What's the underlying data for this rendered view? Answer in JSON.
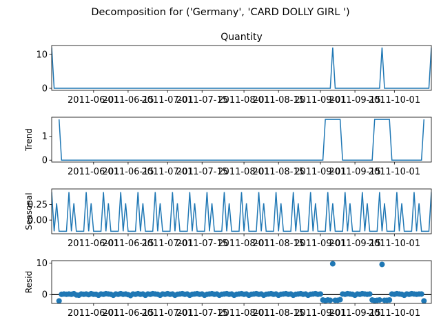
{
  "figure": {
    "suptitle": "Decomposition for ('Germany', 'CARD DOLLY GIRL ')"
  },
  "chart_data": [
    {
      "type": "line",
      "title": "Quantity",
      "ylabel": "",
      "ylim": [
        -0.6,
        12.6
      ],
      "yticks": [
        0,
        10
      ],
      "xlim": [
        0,
        154
      ],
      "xtick_labels": [
        "2011-06-01",
        "2011-06-15",
        "2011-07-01",
        "2011-07-15",
        "2011-08-01",
        "2011-08-15",
        "2011-09-01",
        "2011-09-15",
        "2011-10-01"
      ],
      "xtick_days": [
        17,
        31,
        47,
        61,
        78,
        92,
        109,
        123,
        139
      ],
      "series": [
        {
          "color": "#1f77b4",
          "points": [
            [
              0,
              12
            ],
            [
              1,
              0
            ],
            [
              113,
              0
            ],
            [
              114,
              12
            ],
            [
              115,
              0
            ],
            [
              133,
              0
            ],
            [
              134,
              12
            ],
            [
              135,
              0
            ],
            [
              153,
              0
            ],
            [
              154,
              12
            ]
          ]
        }
      ]
    },
    {
      "type": "line",
      "title": "",
      "ylabel": "Trend",
      "ylim": [
        -0.08,
        1.8
      ],
      "yticks": [
        0,
        1
      ],
      "xlim": [
        0,
        154
      ],
      "xtick_labels": [
        "2011-06-01",
        "2011-06-15",
        "2011-07-01",
        "2011-07-15",
        "2011-08-01",
        "2011-08-15",
        "2011-09-01",
        "2011-09-15",
        "2011-10-01"
      ],
      "xtick_days": [
        17,
        31,
        47,
        61,
        78,
        92,
        109,
        123,
        139
      ],
      "series": [
        {
          "color": "#1f77b4",
          "points": [
            [
              3,
              1.71
            ],
            [
              4,
              0
            ],
            [
              110,
              0
            ],
            [
              111,
              1.71
            ],
            [
              117,
              1.71
            ],
            [
              118,
              0
            ],
            [
              130,
              0
            ],
            [
              131,
              1.71
            ],
            [
              137,
              1.71
            ],
            [
              138,
              0
            ],
            [
              150,
              0
            ],
            [
              151,
              1.71
            ]
          ]
        }
      ]
    },
    {
      "type": "line",
      "title": "",
      "ylabel": "Seasonal",
      "ylim": [
        -0.22,
        0.5
      ],
      "yticks": [
        0.0,
        0.25
      ],
      "ytick_labels": [
        "0.00",
        "0.25"
      ],
      "xlim": [
        0,
        154
      ],
      "xtick_labels": [
        "2011-06-01",
        "2011-06-15",
        "2011-07-01",
        "2011-07-15",
        "2011-08-01",
        "2011-08-15",
        "2011-09-01",
        "2011-09-15",
        "2011-10-01"
      ],
      "xtick_days": [
        17,
        31,
        47,
        61,
        78,
        92,
        109,
        123,
        139
      ],
      "period": 7,
      "seasonal_pattern": [
        0.45,
        -0.18,
        0.27,
        -0.18,
        -0.18,
        -0.18,
        -0.18
      ],
      "series": [
        {
          "color": "#1f77b4"
        }
      ]
    },
    {
      "type": "scatter",
      "title": "",
      "ylabel": "Resid",
      "ylim": [
        -2.8,
        10.8
      ],
      "yticks": [
        0,
        10
      ],
      "baseline": 0,
      "xlim": [
        0,
        154
      ],
      "xtick_labels": [
        "2011-06-01",
        "2011-06-15",
        "2011-07-01",
        "2011-07-15",
        "2011-08-01",
        "2011-08-15",
        "2011-09-01",
        "2011-09-15",
        "2011-10-01"
      ],
      "xtick_days": [
        17,
        31,
        47,
        61,
        78,
        92,
        109,
        123,
        139
      ],
      "series": [
        {
          "color": "#1f77b4",
          "points_note_default_y": 0.1,
          "points": [
            [
              3,
              -2.0
            ],
            [
              4,
              0.1
            ],
            [
              5,
              0.2
            ],
            [
              6,
              0.1
            ],
            [
              7,
              0.2
            ],
            [
              8,
              0.1
            ],
            [
              9,
              0.3
            ],
            [
              10,
              -0.1
            ],
            [
              11,
              -0.2
            ],
            [
              12,
              0.2
            ],
            [
              13,
              0.1
            ],
            [
              14,
              0.2
            ],
            [
              15,
              0.0
            ],
            [
              16,
              0.3
            ],
            [
              17,
              0.1
            ],
            [
              18,
              0.1
            ],
            [
              19,
              -0.2
            ],
            [
              20,
              0.2
            ],
            [
              21,
              0.1
            ],
            [
              22,
              0.3
            ],
            [
              23,
              0.2
            ],
            [
              24,
              0.1
            ],
            [
              25,
              -0.2
            ],
            [
              26,
              0.2
            ],
            [
              27,
              0.1
            ],
            [
              28,
              0.3
            ],
            [
              29,
              0.1
            ],
            [
              30,
              0.2
            ],
            [
              31,
              0.0
            ],
            [
              32,
              -0.3
            ],
            [
              33,
              0.2
            ],
            [
              34,
              0.1
            ],
            [
              35,
              0.3
            ],
            [
              36,
              0.1
            ],
            [
              37,
              0.2
            ],
            [
              38,
              -0.2
            ],
            [
              39,
              0.2
            ],
            [
              40,
              0.1
            ],
            [
              41,
              0.3
            ],
            [
              42,
              0.2
            ],
            [
              43,
              0.1
            ],
            [
              44,
              -0.2
            ],
            [
              45,
              0.2
            ],
            [
              46,
              0.1
            ],
            [
              47,
              0.3
            ],
            [
              48,
              0.1
            ],
            [
              49,
              0.2
            ],
            [
              50,
              -0.2
            ],
            [
              51,
              0.1
            ],
            [
              52,
              0.2
            ],
            [
              53,
              0.3
            ],
            [
              54,
              0.1
            ],
            [
              55,
              0.2
            ],
            [
              56,
              -0.2
            ],
            [
              57,
              0.1
            ],
            [
              58,
              0.2
            ],
            [
              59,
              0.3
            ],
            [
              60,
              0.1
            ],
            [
              61,
              0.2
            ],
            [
              62,
              -0.2
            ],
            [
              63,
              0.1
            ],
            [
              64,
              0.2
            ],
            [
              65,
              0.3
            ],
            [
              66,
              0.1
            ],
            [
              67,
              0.2
            ],
            [
              68,
              -0.2
            ],
            [
              69,
              0.1
            ],
            [
              70,
              0.2
            ],
            [
              71,
              0.3
            ],
            [
              72,
              0.1
            ],
            [
              73,
              0.2
            ],
            [
              74,
              -0.2
            ],
            [
              75,
              0.1
            ],
            [
              76,
              0.2
            ],
            [
              77,
              0.3
            ],
            [
              78,
              0.1
            ],
            [
              79,
              0.2
            ],
            [
              80,
              -0.2
            ],
            [
              81,
              0.1
            ],
            [
              82,
              0.2
            ],
            [
              83,
              0.3
            ],
            [
              84,
              0.1
            ],
            [
              85,
              0.2
            ],
            [
              86,
              -0.2
            ],
            [
              87,
              0.1
            ],
            [
              88,
              0.2
            ],
            [
              89,
              0.3
            ],
            [
              90,
              0.1
            ],
            [
              91,
              0.2
            ],
            [
              92,
              -0.2
            ],
            [
              93,
              0.1
            ],
            [
              94,
              0.2
            ],
            [
              95,
              0.3
            ],
            [
              96,
              0.1
            ],
            [
              97,
              0.2
            ],
            [
              98,
              -0.2
            ],
            [
              99,
              0.1
            ],
            [
              100,
              0.2
            ],
            [
              101,
              0.3
            ],
            [
              102,
              0.1
            ],
            [
              103,
              0.2
            ],
            [
              104,
              -0.2
            ],
            [
              105,
              0.1
            ],
            [
              106,
              0.2
            ],
            [
              107,
              0.3
            ],
            [
              108,
              0.1
            ],
            [
              109,
              0.2
            ],
            [
              110,
              -1.7
            ],
            [
              111,
              -1.9
            ],
            [
              112,
              -1.7
            ],
            [
              113,
              -1.8
            ],
            [
              114,
              9.8
            ],
            [
              115,
              -1.8
            ],
            [
              116,
              -1.8
            ],
            [
              117,
              -1.6
            ],
            [
              118,
              0.2
            ],
            [
              119,
              0.1
            ],
            [
              120,
              0.3
            ],
            [
              121,
              0.2
            ],
            [
              122,
              0.1
            ],
            [
              123,
              -0.2
            ],
            [
              124,
              0.2
            ],
            [
              125,
              0.1
            ],
            [
              126,
              0.3
            ],
            [
              127,
              0.2
            ],
            [
              128,
              0.1
            ],
            [
              129,
              0.2
            ],
            [
              130,
              -1.7
            ],
            [
              131,
              -1.9
            ],
            [
              132,
              -1.8
            ],
            [
              133,
              -1.7
            ],
            [
              134,
              9.6
            ],
            [
              135,
              -1.8
            ],
            [
              136,
              -1.8
            ],
            [
              137,
              -1.7
            ],
            [
              138,
              0.2
            ],
            [
              139,
              0.1
            ],
            [
              140,
              0.3
            ],
            [
              141,
              0.2
            ],
            [
              142,
              0.1
            ],
            [
              143,
              -0.2
            ],
            [
              144,
              0.2
            ],
            [
              145,
              0.1
            ],
            [
              146,
              0.3
            ],
            [
              147,
              0.2
            ],
            [
              148,
              0.1
            ],
            [
              149,
              0.2
            ],
            [
              150,
              0.2
            ],
            [
              151,
              -2.0
            ]
          ]
        }
      ]
    }
  ]
}
